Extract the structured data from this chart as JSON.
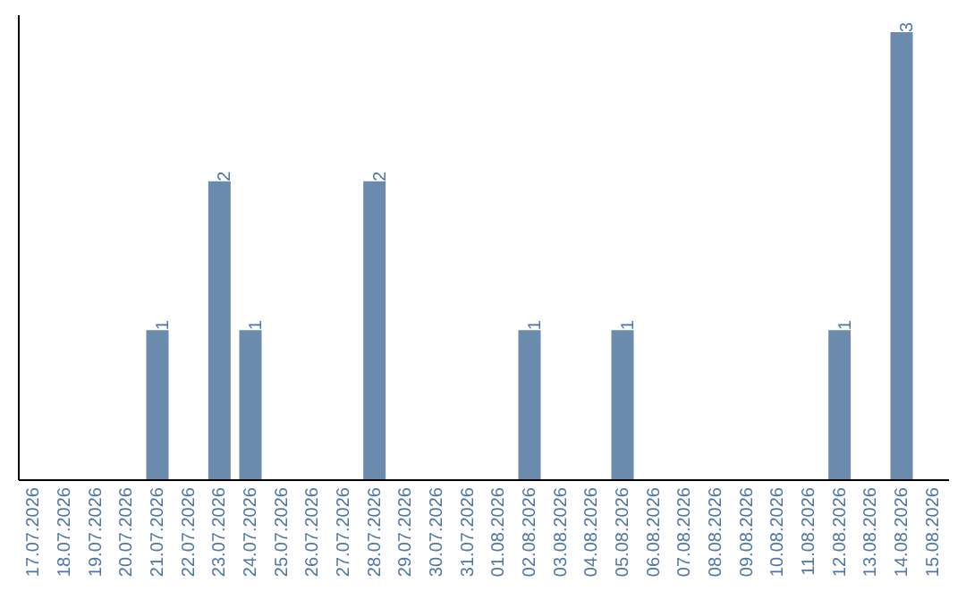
{
  "chart_data": {
    "type": "bar",
    "categories": [
      "17.07.2026",
      "18.07.2026",
      "19.07.2026",
      "20.07.2026",
      "21.07.2026",
      "22.07.2026",
      "23.07.2026",
      "24.07.2026",
      "25.07.2026",
      "26.07.2026",
      "27.07.2026",
      "28.07.2026",
      "29.07.2026",
      "30.07.2026",
      "31.07.2026",
      "01.08.2026",
      "02.08.2026",
      "03.08.2026",
      "04.08.2026",
      "05.08.2026",
      "06.08.2026",
      "07.08.2026",
      "08.08.2026",
      "09.08.2026",
      "10.08.2026",
      "11.08.2026",
      "12.08.2026",
      "13.08.2026",
      "14.08.2026",
      "15.08.2026"
    ],
    "values": [
      0,
      0,
      0,
      0,
      1,
      0,
      2,
      1,
      0,
      0,
      0,
      2,
      0,
      0,
      0,
      0,
      1,
      0,
      0,
      1,
      0,
      0,
      0,
      0,
      0,
      0,
      1,
      0,
      3,
      0
    ],
    "value_labels": [
      null,
      null,
      null,
      null,
      "1",
      null,
      "2",
      "1",
      null,
      null,
      null,
      "2",
      null,
      null,
      null,
      null,
      "1",
      null,
      null,
      "1",
      null,
      null,
      null,
      null,
      null,
      null,
      "1",
      null,
      "3",
      null
    ],
    "color": "#6a8bab",
    "tick_labels": "x"
  }
}
